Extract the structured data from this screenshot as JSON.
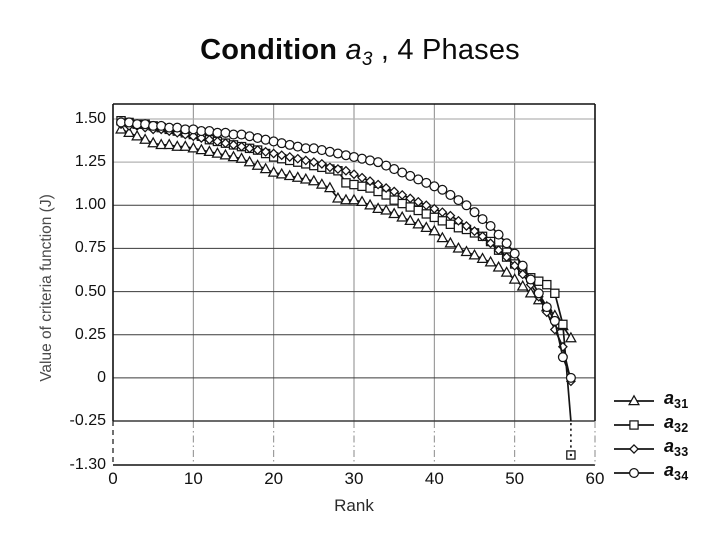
{
  "slide_title": {
    "bold": "Condition",
    "variable": "a",
    "subscript": "3",
    "suffix": " , 4 Phases"
  },
  "chart_data": {
    "type": "line",
    "title": "Condition a3 , 4 Phases",
    "xlabel": "Rank",
    "ylabel": "Value of criteria function (J)",
    "grid": true,
    "legend_position": "bottom-right",
    "xlim": [
      0,
      60
    ],
    "x_start_rank": 1,
    "x_ticks": [
      "0",
      "10",
      "20",
      "30",
      "40",
      "50",
      "60"
    ],
    "x_tick_values": [
      0,
      10,
      20,
      30,
      40,
      50,
      60
    ],
    "y_ticks": [
      "1.50",
      "1.25",
      "1.00",
      "0.75",
      "0.50",
      "0.25",
      "0",
      "-0.25",
      "-1.30"
    ],
    "y_tick_values": [
      1.5,
      1.25,
      1.0,
      0.75,
      0.5,
      0.25,
      0,
      -0.25,
      -1.3
    ],
    "axis_break": {
      "above": -0.25,
      "bottom": -1.3
    },
    "colors": {
      "line": "#141414",
      "grid_light": "#b3b3b3",
      "grid_dark": "#3a3a3a",
      "grid_vertical": "#8a8a8a",
      "frame": "#111111",
      "marker_fill": "#ffffff"
    },
    "series": [
      {
        "name": "a31",
        "label_var": "a",
        "label_sub": "31",
        "marker": "triangle",
        "values": [
          1.44,
          1.42,
          1.4,
          1.38,
          1.36,
          1.35,
          1.35,
          1.34,
          1.34,
          1.33,
          1.32,
          1.31,
          1.3,
          1.29,
          1.28,
          1.27,
          1.25,
          1.23,
          1.21,
          1.19,
          1.18,
          1.17,
          1.16,
          1.15,
          1.14,
          1.12,
          1.1,
          1.04,
          1.03,
          1.03,
          1.02,
          1.0,
          0.98,
          0.97,
          0.95,
          0.93,
          0.91,
          0.89,
          0.87,
          0.85,
          0.81,
          0.78,
          0.75,
          0.73,
          0.71,
          0.69,
          0.67,
          0.64,
          0.61,
          0.57,
          0.53,
          0.49,
          0.45,
          0.41,
          0.36,
          0.3,
          0.23
        ]
      },
      {
        "name": "a32",
        "label_var": "a",
        "label_sub": "32",
        "marker": "square",
        "values": [
          1.49,
          1.48,
          1.47,
          1.47,
          1.46,
          1.45,
          1.44,
          1.43,
          1.42,
          1.41,
          1.4,
          1.38,
          1.37,
          1.36,
          1.35,
          1.34,
          1.33,
          1.32,
          1.3,
          1.28,
          1.27,
          1.26,
          1.25,
          1.24,
          1.23,
          1.22,
          1.21,
          1.2,
          1.13,
          1.12,
          1.11,
          1.1,
          1.08,
          1.06,
          1.03,
          1.01,
          0.99,
          0.97,
          0.95,
          0.93,
          0.91,
          0.89,
          0.87,
          0.86,
          0.84,
          0.82,
          0.79,
          0.74,
          0.7,
          0.66,
          0.62,
          0.58,
          0.56,
          0.54,
          0.49,
          0.31,
          -1.3
        ]
      },
      {
        "name": "a33",
        "label_var": "a",
        "label_sub": "33",
        "marker": "diamond",
        "values": [
          1.47,
          1.46,
          1.46,
          1.45,
          1.44,
          1.44,
          1.43,
          1.42,
          1.41,
          1.4,
          1.39,
          1.38,
          1.37,
          1.36,
          1.35,
          1.34,
          1.33,
          1.32,
          1.31,
          1.3,
          1.29,
          1.28,
          1.27,
          1.26,
          1.25,
          1.24,
          1.22,
          1.21,
          1.2,
          1.18,
          1.16,
          1.14,
          1.12,
          1.1,
          1.08,
          1.06,
          1.04,
          1.02,
          1.0,
          0.98,
          0.96,
          0.94,
          0.91,
          0.88,
          0.85,
          0.82,
          0.78,
          0.74,
          0.7,
          0.65,
          0.6,
          0.54,
          0.47,
          0.38,
          0.28,
          0.18,
          -0.02
        ]
      },
      {
        "name": "a34",
        "label_var": "a",
        "label_sub": "34",
        "marker": "circle",
        "values": [
          1.48,
          1.48,
          1.47,
          1.47,
          1.46,
          1.46,
          1.45,
          1.45,
          1.44,
          1.44,
          1.43,
          1.43,
          1.42,
          1.42,
          1.41,
          1.41,
          1.4,
          1.39,
          1.38,
          1.37,
          1.36,
          1.35,
          1.34,
          1.33,
          1.33,
          1.32,
          1.31,
          1.3,
          1.29,
          1.28,
          1.27,
          1.26,
          1.25,
          1.23,
          1.21,
          1.19,
          1.17,
          1.15,
          1.13,
          1.11,
          1.09,
          1.06,
          1.03,
          1.0,
          0.96,
          0.92,
          0.88,
          0.83,
          0.78,
          0.72,
          0.65,
          0.57,
          0.49,
          0.41,
          0.33,
          0.12,
          0.0
        ]
      }
    ]
  }
}
